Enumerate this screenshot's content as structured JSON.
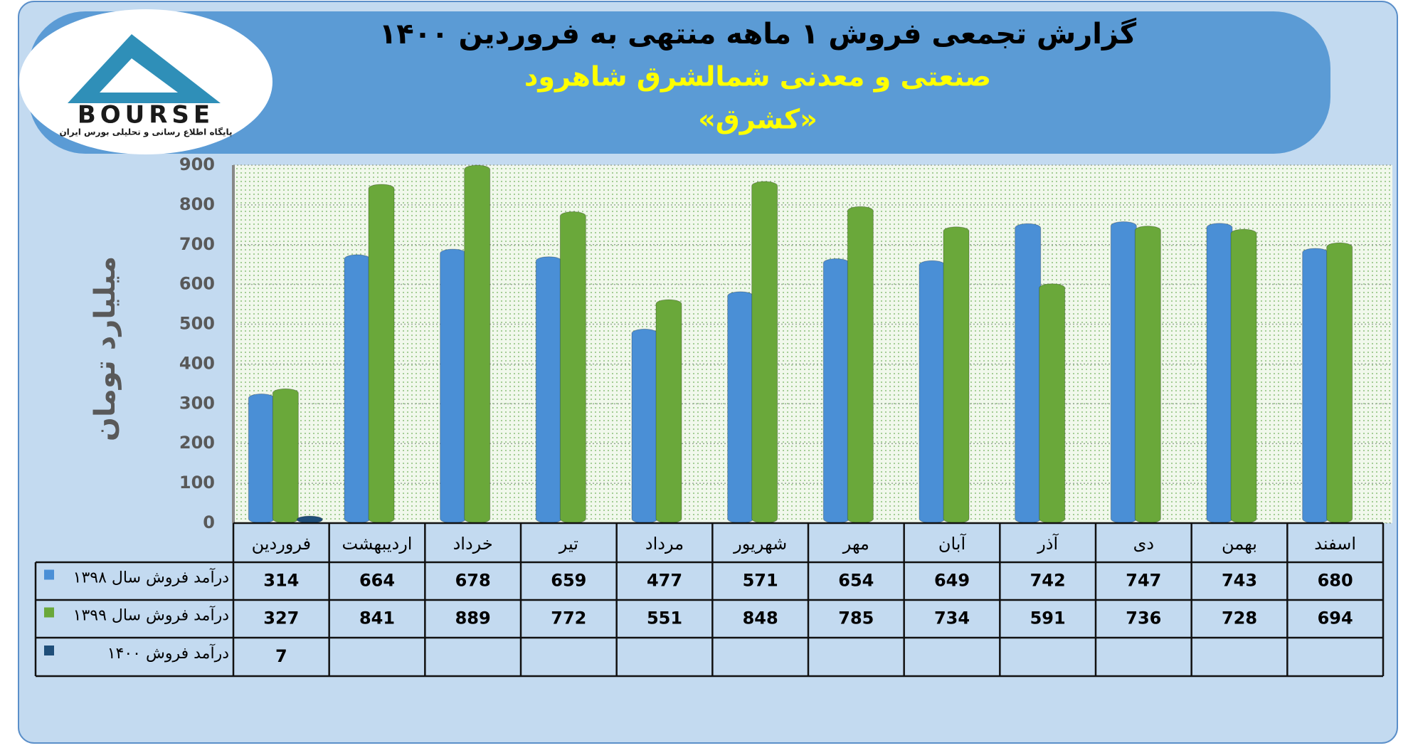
{
  "logo": {
    "text": "BOURSE",
    "subtitle": "پایگاه اطلاع رسانی و تحلیلی بورس ایران"
  },
  "chart_data": {
    "type": "bar",
    "title": "گزارش تجمعی فروش ۱ ماهه منتهی به فروردین ۱۴۰۰",
    "subtitle": "صنعتی و معدنی شمالشرق شاهرود",
    "symbol": "«کشرق»",
    "y_label": "میلیارد تومان",
    "categories": [
      "فروردین",
      "اردیبهشت",
      "خرداد",
      "تیر",
      "مرداد",
      "شهریور",
      "مهر",
      "آبان",
      "آذر",
      "دی",
      "بهمن",
      "اسفند"
    ],
    "series": [
      {
        "name": "درآمد فروش سال ۱۳۹۸",
        "color": "#4a8fd6",
        "values": [
          314,
          664,
          678,
          659,
          477,
          571,
          654,
          649,
          742,
          747,
          743,
          680
        ]
      },
      {
        "name": "درآمد فروش سال ۱۳۹۹",
        "color": "#6aa83a",
        "values": [
          327,
          841,
          889,
          772,
          551,
          848,
          785,
          734,
          591,
          736,
          728,
          694
        ]
      },
      {
        "name": "درآمد فروش ۱۴۰۰",
        "color": "#1f4e79",
        "values": [
          7,
          null,
          null,
          null,
          null,
          null,
          null,
          null,
          null,
          null,
          null,
          null
        ]
      }
    ],
    "ylim": [
      0,
      900
    ],
    "yticks": [
      0,
      100,
      200,
      300,
      400,
      500,
      600,
      700,
      800,
      900
    ],
    "grid": true
  }
}
